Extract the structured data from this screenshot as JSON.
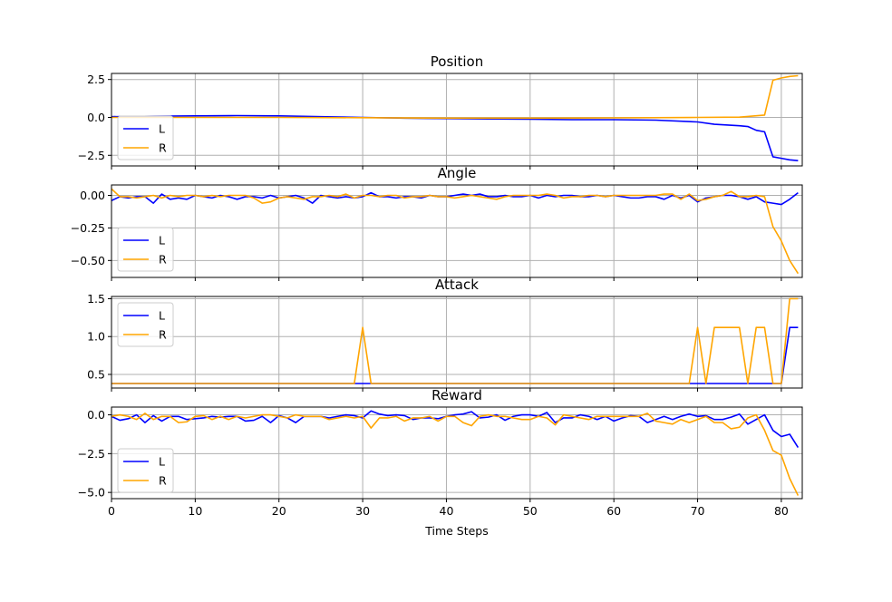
{
  "chart_data": [
    {
      "type": "line",
      "title": "Position",
      "ylim": [
        -3.2,
        2.9
      ],
      "yticks": [
        -2.5,
        0.0,
        2.5
      ],
      "ytick_labels": [
        "−2.5",
        "0.0",
        "2.5"
      ],
      "show_xtick_labels": false,
      "legend": "lower-left",
      "series": [
        {
          "name": "L",
          "color": "#0000ff",
          "x": [
            0,
            5,
            10,
            15,
            20,
            25,
            30,
            35,
            40,
            45,
            50,
            55,
            60,
            65,
            70,
            72,
            75,
            76,
            77,
            78,
            79,
            80,
            81,
            82
          ],
          "values": [
            0.05,
            0.08,
            0.1,
            0.12,
            0.1,
            0.05,
            0.0,
            -0.05,
            -0.08,
            -0.1,
            -0.12,
            -0.15,
            -0.15,
            -0.18,
            -0.3,
            -0.45,
            -0.55,
            -0.6,
            -0.85,
            -0.95,
            -2.6,
            -2.7,
            -2.8,
            -2.85
          ]
        },
        {
          "name": "R",
          "color": "#ffa500",
          "x": [
            0,
            10,
            20,
            30,
            40,
            50,
            60,
            70,
            75,
            78,
            79,
            80,
            81,
            82
          ],
          "values": [
            0.0,
            0.0,
            0.0,
            -0.02,
            -0.05,
            -0.05,
            -0.03,
            0.0,
            0.02,
            0.15,
            2.45,
            2.6,
            2.7,
            2.75
          ]
        }
      ]
    },
    {
      "type": "line",
      "title": "Angle",
      "ylim": [
        -0.63,
        0.08
      ],
      "yticks": [
        -0.5,
        -0.25,
        0.0
      ],
      "ytick_labels": [
        "−0.50",
        "−0.25",
        "0.00"
      ],
      "show_xtick_labels": false,
      "legend": "lower-left",
      "series": [
        {
          "name": "L",
          "color": "#0000ff",
          "x": [
            0,
            1,
            2,
            3,
            4,
            5,
            6,
            7,
            8,
            9,
            10,
            11,
            12,
            13,
            14,
            15,
            16,
            17,
            18,
            19,
            20,
            21,
            22,
            23,
            24,
            25,
            26,
            27,
            28,
            29,
            30,
            31,
            32,
            33,
            34,
            35,
            36,
            37,
            38,
            39,
            40,
            41,
            42,
            43,
            44,
            45,
            46,
            47,
            48,
            49,
            50,
            51,
            52,
            53,
            54,
            55,
            56,
            57,
            58,
            59,
            60,
            61,
            62,
            63,
            64,
            65,
            66,
            67,
            68,
            69,
            70,
            71,
            72,
            73,
            74,
            75,
            76,
            77,
            78,
            79,
            80,
            81,
            82
          ],
          "values": [
            -0.04,
            -0.01,
            -0.02,
            -0.01,
            -0.01,
            -0.06,
            0.01,
            -0.03,
            -0.02,
            -0.03,
            0.0,
            -0.01,
            -0.02,
            0.0,
            -0.01,
            -0.03,
            -0.01,
            -0.01,
            -0.02,
            0.0,
            -0.02,
            -0.01,
            0.0,
            -0.02,
            -0.06,
            0.0,
            -0.01,
            -0.02,
            -0.01,
            -0.02,
            -0.01,
            0.02,
            -0.01,
            -0.01,
            -0.02,
            -0.01,
            -0.01,
            -0.02,
            0.0,
            -0.01,
            -0.01,
            0.0,
            0.01,
            0.0,
            0.01,
            -0.01,
            -0.01,
            0.0,
            -0.01,
            -0.01,
            0.0,
            -0.02,
            0.0,
            -0.01,
            0.0,
            0.0,
            -0.01,
            -0.01,
            0.0,
            -0.01,
            0.0,
            -0.01,
            -0.02,
            -0.02,
            -0.01,
            -0.01,
            -0.03,
            0.0,
            -0.02,
            0.0,
            -0.05,
            -0.02,
            -0.01,
            0.0,
            0.0,
            -0.01,
            -0.03,
            -0.01,
            -0.05,
            -0.06,
            -0.07,
            -0.03,
            0.02
          ]
        },
        {
          "name": "R",
          "color": "#ffa500",
          "x": [
            0,
            1,
            2,
            3,
            4,
            5,
            6,
            7,
            8,
            9,
            10,
            11,
            12,
            13,
            14,
            15,
            16,
            17,
            18,
            19,
            20,
            21,
            22,
            23,
            24,
            25,
            26,
            27,
            28,
            29,
            30,
            31,
            32,
            33,
            34,
            35,
            36,
            37,
            38,
            39,
            40,
            41,
            42,
            43,
            44,
            45,
            46,
            47,
            48,
            49,
            50,
            51,
            52,
            53,
            54,
            55,
            56,
            57,
            58,
            59,
            60,
            61,
            62,
            63,
            64,
            65,
            66,
            67,
            68,
            69,
            70,
            71,
            72,
            73,
            74,
            75,
            76,
            77,
            78,
            79,
            80,
            81,
            82
          ],
          "values": [
            0.05,
            -0.01,
            -0.01,
            -0.02,
            -0.01,
            0.0,
            -0.02,
            0.0,
            -0.01,
            0.0,
            0.0,
            -0.01,
            0.0,
            -0.01,
            0.0,
            0.0,
            0.0,
            -0.02,
            -0.06,
            -0.05,
            -0.02,
            -0.01,
            -0.02,
            -0.03,
            -0.01,
            -0.01,
            0.0,
            -0.01,
            0.01,
            -0.02,
            0.0,
            0.0,
            -0.01,
            0.0,
            0.0,
            -0.02,
            -0.01,
            -0.01,
            0.0,
            -0.01,
            -0.01,
            -0.02,
            -0.01,
            0.0,
            -0.01,
            -0.02,
            -0.03,
            -0.01,
            0.0,
            0.0,
            0.0,
            0.0,
            0.01,
            0.0,
            -0.02,
            -0.01,
            -0.01,
            0.0,
            0.0,
            -0.01,
            0.0,
            0.0,
            0.0,
            0.0,
            0.0,
            0.0,
            0.01,
            0.01,
            -0.03,
            0.01,
            -0.04,
            -0.03,
            -0.01,
            0.0,
            0.03,
            -0.01,
            -0.01,
            0.0,
            -0.01,
            -0.24,
            -0.35,
            -0.5,
            -0.6
          ]
        }
      ]
    },
    {
      "type": "line",
      "title": "Attack",
      "ylim": [
        0.32,
        1.53
      ],
      "yticks": [
        0.5,
        1.0,
        1.5
      ],
      "ytick_labels": [
        "0.5",
        "1.0",
        "1.5"
      ],
      "show_xtick_labels": false,
      "legend": "upper-left",
      "series": [
        {
          "name": "L",
          "color": "#0000ff",
          "x": [
            0,
            79,
            80,
            81,
            82
          ],
          "values": [
            0.38,
            0.38,
            0.38,
            1.12,
            1.12
          ]
        },
        {
          "name": "R",
          "color": "#ffa500",
          "x": [
            0,
            29,
            30,
            31,
            69,
            70,
            71,
            72,
            73,
            74,
            75,
            76,
            77,
            78,
            79,
            80,
            81,
            82
          ],
          "values": [
            0.38,
            0.38,
            1.12,
            0.38,
            0.38,
            1.12,
            0.38,
            1.12,
            1.12,
            1.12,
            1.12,
            0.38,
            1.12,
            1.12,
            0.38,
            0.38,
            1.5,
            1.5
          ]
        }
      ]
    },
    {
      "type": "line",
      "title": "Reward",
      "ylim": [
        -5.4,
        0.5
      ],
      "yticks": [
        -5.0,
        -2.5,
        0.0
      ],
      "ytick_labels": [
        "−5.0",
        "−2.5",
        "0.0"
      ],
      "show_xtick_labels": true,
      "xlabel": "Time Steps",
      "legend": "lower-left",
      "series": [
        {
          "name": "L",
          "color": "#0000ff",
          "x": [
            0,
            1,
            2,
            3,
            4,
            5,
            6,
            7,
            8,
            9,
            10,
            11,
            12,
            13,
            14,
            15,
            16,
            17,
            18,
            19,
            20,
            21,
            22,
            23,
            24,
            25,
            26,
            27,
            28,
            29,
            30,
            31,
            32,
            33,
            34,
            35,
            36,
            37,
            38,
            39,
            40,
            41,
            42,
            43,
            44,
            45,
            46,
            47,
            48,
            49,
            50,
            51,
            52,
            53,
            54,
            55,
            56,
            57,
            58,
            59,
            60,
            61,
            62,
            63,
            64,
            65,
            66,
            67,
            68,
            69,
            70,
            71,
            72,
            73,
            74,
            75,
            76,
            77,
            78,
            79,
            80,
            81,
            82
          ],
          "values": [
            -0.1,
            -0.35,
            -0.25,
            0.0,
            -0.5,
            -0.05,
            -0.4,
            -0.1,
            -0.1,
            -0.3,
            -0.25,
            -0.2,
            -0.1,
            -0.15,
            -0.1,
            -0.1,
            -0.4,
            -0.35,
            -0.1,
            -0.5,
            -0.05,
            -0.2,
            -0.5,
            -0.1,
            -0.1,
            -0.1,
            -0.2,
            -0.1,
            0.0,
            -0.05,
            -0.2,
            0.25,
            0.05,
            -0.05,
            0.0,
            -0.05,
            -0.3,
            -0.2,
            -0.2,
            -0.25,
            -0.1,
            0.0,
            0.05,
            0.2,
            -0.2,
            -0.15,
            0.0,
            -0.35,
            -0.1,
            0.0,
            0.0,
            -0.1,
            0.15,
            -0.5,
            -0.2,
            -0.2,
            0.0,
            -0.1,
            -0.3,
            -0.1,
            -0.4,
            -0.2,
            -0.05,
            -0.1,
            -0.5,
            -0.3,
            -0.1,
            -0.3,
            -0.1,
            0.05,
            -0.1,
            -0.05,
            -0.3,
            -0.3,
            -0.15,
            0.05,
            -0.6,
            -0.3,
            0.0,
            -1.0,
            -1.4,
            -1.25,
            -2.1
          ]
        },
        {
          "name": "R",
          "color": "#ffa500",
          "x": [
            0,
            1,
            2,
            3,
            4,
            5,
            6,
            7,
            8,
            9,
            10,
            11,
            12,
            13,
            14,
            15,
            16,
            17,
            18,
            19,
            20,
            21,
            22,
            23,
            24,
            25,
            26,
            27,
            28,
            29,
            30,
            31,
            32,
            33,
            34,
            35,
            36,
            37,
            38,
            39,
            40,
            41,
            42,
            43,
            44,
            45,
            46,
            47,
            48,
            49,
            50,
            51,
            52,
            53,
            54,
            55,
            56,
            57,
            58,
            59,
            60,
            61,
            62,
            63,
            64,
            65,
            66,
            67,
            68,
            69,
            70,
            71,
            72,
            73,
            74,
            75,
            76,
            77,
            78,
            79,
            80,
            81,
            82
          ],
          "values": [
            -0.1,
            0.0,
            -0.1,
            -0.3,
            0.1,
            -0.3,
            -0.1,
            -0.1,
            -0.5,
            -0.45,
            -0.1,
            -0.05,
            -0.3,
            -0.1,
            -0.3,
            -0.1,
            -0.2,
            -0.1,
            0.0,
            0.0,
            -0.1,
            -0.2,
            0.0,
            -0.1,
            -0.1,
            -0.1,
            -0.3,
            -0.2,
            -0.1,
            -0.2,
            -0.1,
            -0.85,
            -0.2,
            -0.2,
            -0.1,
            -0.4,
            -0.2,
            -0.2,
            -0.1,
            -0.4,
            -0.1,
            -0.1,
            -0.5,
            -0.7,
            -0.1,
            0.0,
            -0.1,
            -0.1,
            -0.2,
            -0.3,
            -0.3,
            -0.1,
            -0.2,
            -0.65,
            0.0,
            -0.1,
            -0.2,
            -0.3,
            -0.1,
            -0.1,
            -0.1,
            -0.1,
            -0.1,
            -0.1,
            0.1,
            -0.4,
            -0.5,
            -0.6,
            -0.3,
            -0.5,
            -0.3,
            -0.1,
            -0.5,
            -0.5,
            -0.9,
            -0.8,
            -0.2,
            0.0,
            -1.0,
            -2.3,
            -2.6,
            -4.1,
            -5.2
          ]
        }
      ]
    }
  ],
  "xlim": [
    0,
    82.5
  ],
  "xticks": [
    0,
    10,
    20,
    30,
    40,
    50,
    60,
    70,
    80
  ],
  "xtick_labels": [
    "0",
    "10",
    "20",
    "30",
    "40",
    "50",
    "60",
    "70",
    "80"
  ]
}
